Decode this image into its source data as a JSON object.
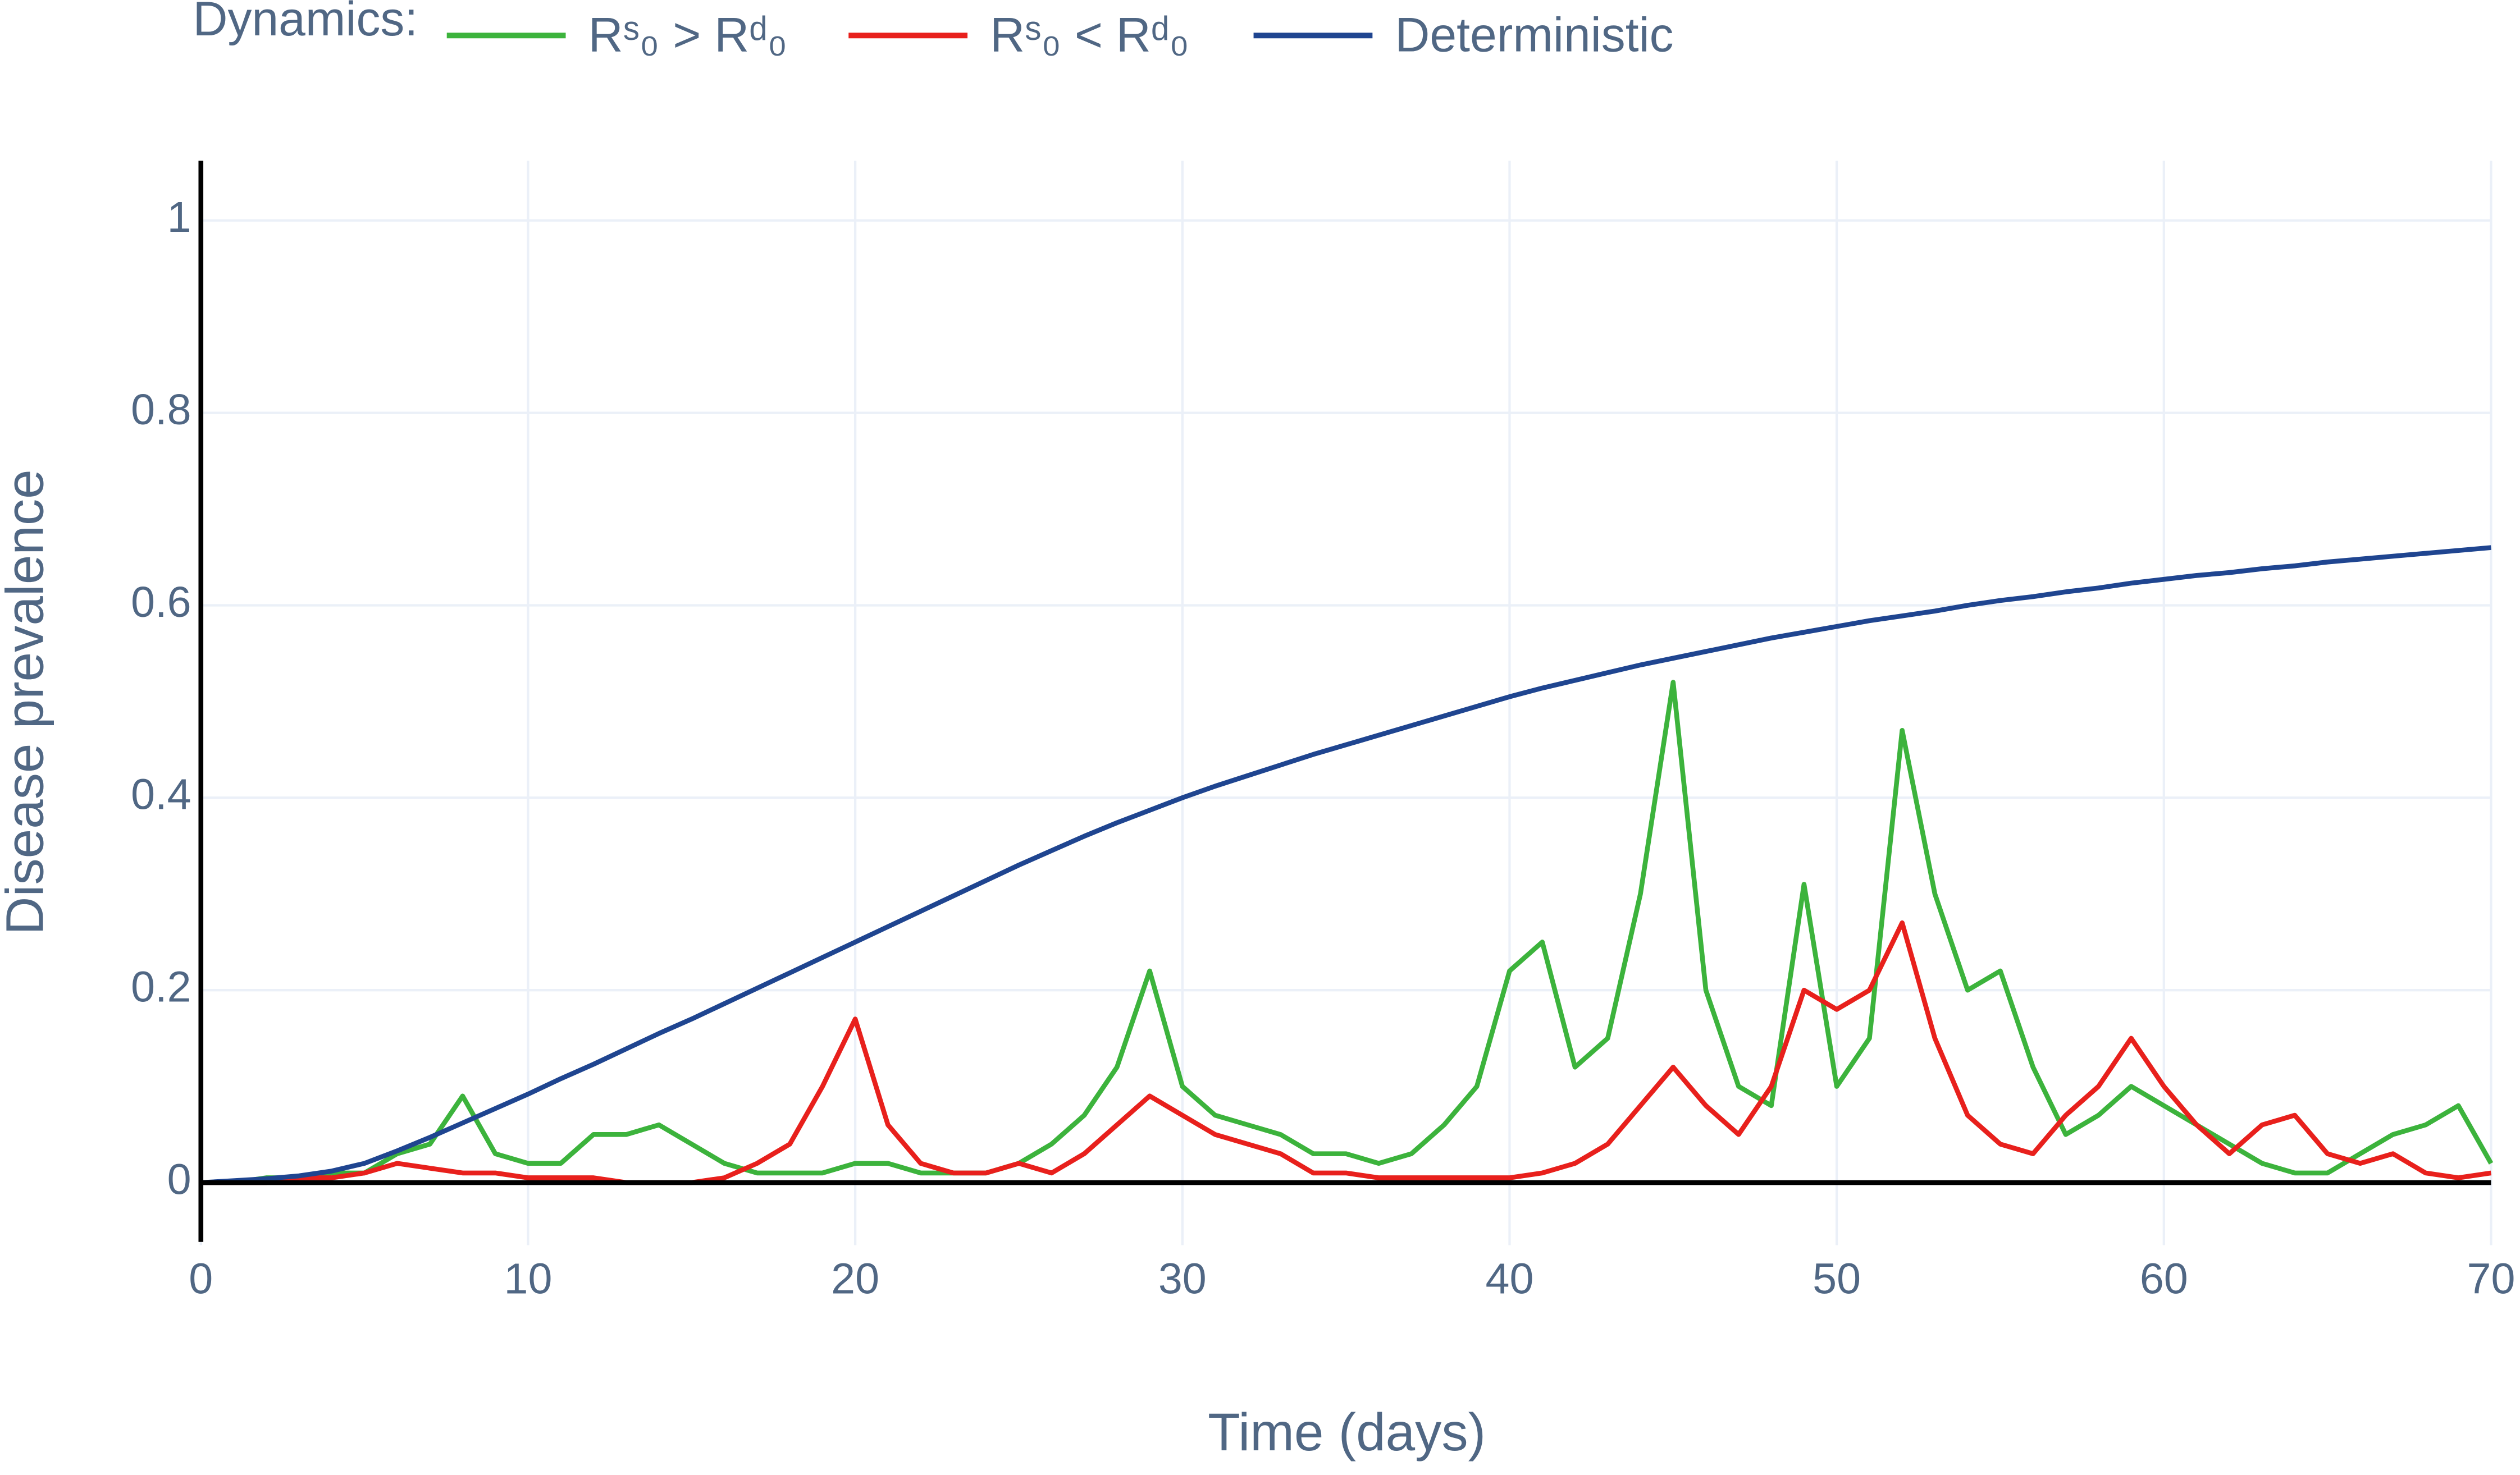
{
  "chart_data": {
    "type": "line",
    "x_label": "Time (days)",
    "y_label": "Disease prevalence",
    "legend_title": "Dynamics:",
    "x": [
      0,
      1,
      2,
      3,
      4,
      5,
      6,
      7,
      8,
      9,
      10,
      11,
      12,
      13,
      14,
      15,
      16,
      17,
      18,
      19,
      20,
      21,
      22,
      23,
      24,
      25,
      26,
      27,
      28,
      29,
      30,
      31,
      32,
      33,
      34,
      35,
      36,
      37,
      38,
      39,
      40,
      41,
      42,
      43,
      44,
      45,
      46,
      47,
      48,
      49,
      50,
      51,
      52,
      53,
      54,
      55,
      56,
      57,
      58,
      59,
      60,
      61,
      62,
      63,
      64,
      65,
      66,
      67,
      68,
      69,
      70
    ],
    "series": [
      {
        "name": "Rˢ₀ > Rᵈ₀",
        "color": "#3cb33c",
        "values": [
          0,
          0,
          0.005,
          0.005,
          0.01,
          0.01,
          0.03,
          0.04,
          0.09,
          0.03,
          0.02,
          0.02,
          0.05,
          0.05,
          0.06,
          0.04,
          0.02,
          0.01,
          0.01,
          0.01,
          0.02,
          0.02,
          0.01,
          0.01,
          0.01,
          0.02,
          0.04,
          0.07,
          0.12,
          0.22,
          0.1,
          0.07,
          0.06,
          0.05,
          0.03,
          0.03,
          0.02,
          0.03,
          0.06,
          0.1,
          0.22,
          0.25,
          0.12,
          0.15,
          0.3,
          0.52,
          0.2,
          0.1,
          0.08,
          0.31,
          0.1,
          0.15,
          0.47,
          0.3,
          0.2,
          0.22,
          0.12,
          0.05,
          0.07,
          0.1,
          0.08,
          0.06,
          0.04,
          0.02,
          0.01,
          0.01,
          0.03,
          0.05,
          0.06,
          0.08,
          0.02
        ]
      },
      {
        "name": "Rˢ₀ < Rᵈ₀",
        "color": "#e8201c",
        "values": [
          0,
          0,
          0,
          0.005,
          0.005,
          0.01,
          0.02,
          0.015,
          0.01,
          0.01,
          0.005,
          0.005,
          0.005,
          0,
          0,
          0,
          0.005,
          0.02,
          0.04,
          0.1,
          0.17,
          0.06,
          0.02,
          0.01,
          0.01,
          0.02,
          0.01,
          0.03,
          0.06,
          0.09,
          0.07,
          0.05,
          0.04,
          0.03,
          0.01,
          0.01,
          0.005,
          0.005,
          0.005,
          0.005,
          0.005,
          0.01,
          0.02,
          0.04,
          0.08,
          0.12,
          0.08,
          0.05,
          0.1,
          0.2,
          0.18,
          0.2,
          0.27,
          0.15,
          0.07,
          0.04,
          0.03,
          0.07,
          0.1,
          0.15,
          0.1,
          0.06,
          0.03,
          0.06,
          0.07,
          0.03,
          0.02,
          0.03,
          0.01,
          0.005,
          0.01
        ]
      },
      {
        "name": "Deterministic",
        "color": "#1f4590",
        "values": [
          0,
          0.002,
          0.004,
          0.007,
          0.012,
          0.02,
          0.033,
          0.047,
          0.062,
          0.077,
          0.092,
          0.108,
          0.123,
          0.139,
          0.155,
          0.17,
          0.186,
          0.202,
          0.218,
          0.234,
          0.25,
          0.266,
          0.282,
          0.298,
          0.314,
          0.33,
          0.345,
          0.36,
          0.374,
          0.387,
          0.4,
          0.412,
          0.423,
          0.434,
          0.445,
          0.455,
          0.465,
          0.475,
          0.485,
          0.495,
          0.505,
          0.514,
          0.522,
          0.53,
          0.538,
          0.545,
          0.552,
          0.559,
          0.566,
          0.572,
          0.578,
          0.584,
          0.589,
          0.594,
          0.6,
          0.605,
          0.609,
          0.614,
          0.618,
          0.623,
          0.627,
          0.631,
          0.634,
          0.638,
          0.641,
          0.645,
          0.648,
          0.651,
          0.654,
          0.657,
          0.66
        ]
      }
    ],
    "xlim": [
      0,
      70
    ],
    "ylim": [
      -0.065,
      1.062
    ],
    "xticks": [
      0,
      10,
      20,
      30,
      40,
      50,
      60,
      70
    ],
    "yticks": [
      0,
      0.2,
      0.4,
      0.6,
      0.8,
      1
    ],
    "grid": true
  }
}
